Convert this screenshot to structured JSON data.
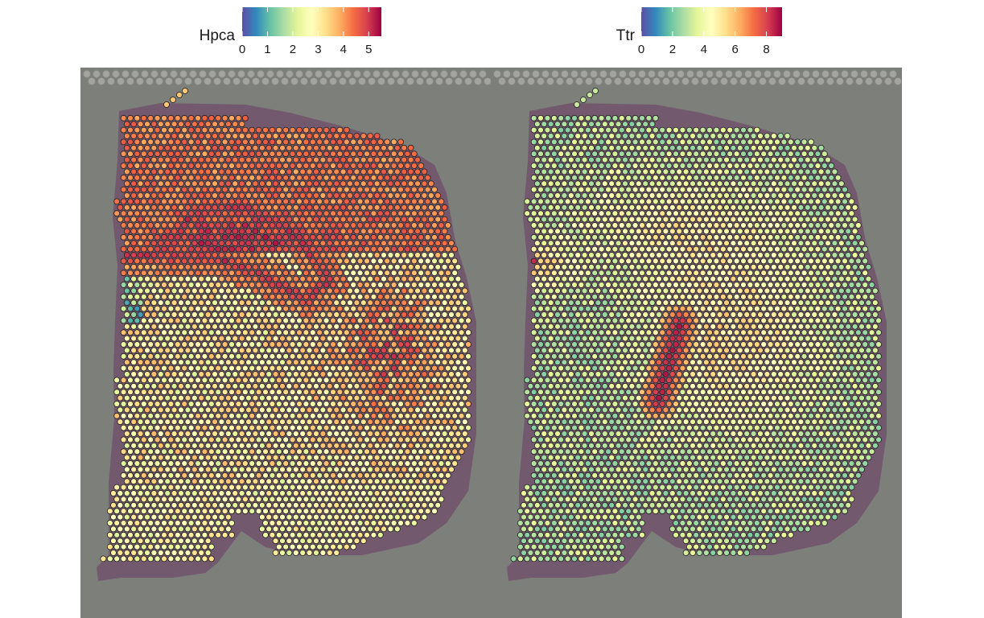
{
  "colorscale": [
    "#5e4fa2",
    "#3288bd",
    "#66c2a5",
    "#abdda4",
    "#e6f598",
    "#ffffbf",
    "#fee08b",
    "#fdae61",
    "#f46d43",
    "#d53e4f",
    "#9e0142"
  ],
  "slide": {
    "background": "#7d7f7b",
    "tissue_edge": "#6b3a62"
  },
  "chart_data": [
    {
      "type": "heatmap",
      "title": "",
      "gene": "Hpca",
      "legend": {
        "title": "Hpca",
        "min": 0,
        "max": 5.5,
        "ticks": [
          0,
          1,
          2,
          3,
          4,
          5
        ],
        "tick_labels": [
          "0",
          "1",
          "2",
          "3",
          "4",
          "5"
        ]
      },
      "pattern": "cornu ammonis band high; dorsal cortex moderate-high; ventral thalamus low"
    },
    {
      "type": "heatmap",
      "title": "",
      "gene": "Ttr",
      "legend": {
        "title": "Ttr",
        "min": 0,
        "max": 9,
        "ticks": [
          0,
          2,
          4,
          6,
          8
        ],
        "tick_labels": [
          "0",
          "2",
          "4",
          "6",
          "8"
        ]
      },
      "pattern": "choroid plexus streak high; mid-brain region moderate; rest low"
    }
  ]
}
